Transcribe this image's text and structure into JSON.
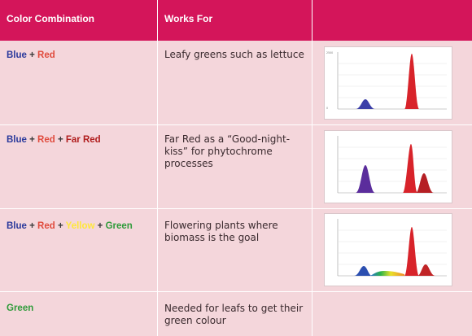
{
  "header": {
    "col1": "Color Combination",
    "col2": "Works For",
    "col3": ""
  },
  "rows": [
    {
      "combo": [
        {
          "text": "Blue",
          "color": "blue"
        },
        {
          "text": " + ",
          "color": "plus"
        },
        {
          "text": "Red",
          "color": "red"
        }
      ],
      "works": "Leafy greens such as lettuce",
      "chart": {
        "peaks": [
          "blue",
          "red"
        ]
      }
    },
    {
      "combo": [
        {
          "text": "Blue",
          "color": "blue"
        },
        {
          "text": " + ",
          "color": "plus"
        },
        {
          "text": "Red",
          "color": "red"
        },
        {
          "text": " + ",
          "color": "plus"
        },
        {
          "text": "Far Red",
          "color": "farred"
        }
      ],
      "works": "Far Red as a “Good-night-kiss” for phytochrome processes",
      "chart": {
        "peaks": [
          "purple",
          "red",
          "farred"
        ]
      }
    },
    {
      "combo": [
        {
          "text": "Blue",
          "color": "blue"
        },
        {
          "text": " + ",
          "color": "plus"
        },
        {
          "text": "Red",
          "color": "red"
        },
        {
          "text": " + ",
          "color": "plus"
        },
        {
          "text": "Yellow",
          "color": "yellow"
        },
        {
          "text": " + ",
          "color": "plus"
        },
        {
          "text": "Green",
          "color": "green"
        }
      ],
      "works": "Flowering plants where biomass is the goal",
      "chart": {
        "peaks": [
          "blue",
          "spectrum",
          "red",
          "farred"
        ]
      }
    },
    {
      "combo": [
        {
          "text": "Green",
          "color": "green"
        }
      ],
      "works": "Needed for leafs to get their green colour",
      "chart": null
    }
  ],
  "colors": {
    "header_bg": "#d4155a",
    "row_bg": "#f4d6db",
    "blue": "#2b3a9c",
    "red": "#e04a3c",
    "farred": "#b01c1c",
    "yellow": "#ffe83a",
    "green": "#2f9b3a"
  }
}
